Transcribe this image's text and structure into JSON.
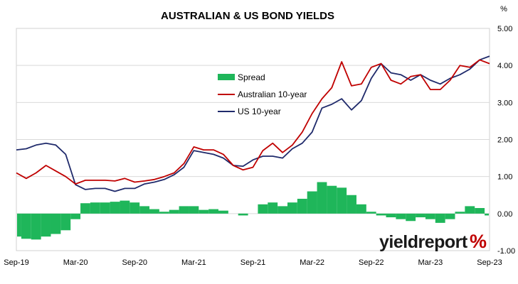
{
  "chart_data": {
    "type": "line",
    "title": "AUSTRALIAN & US BOND YIELDS",
    "unit_label": "%",
    "xlabel": "",
    "ylabel": "",
    "ylim": [
      -1.0,
      5.0
    ],
    "y_ticks": [
      "5.00",
      "4.00",
      "3.00",
      "2.00",
      "1.00",
      "0.00",
      "-1.00"
    ],
    "x_ticks": [
      "Sep-19",
      "Mar-20",
      "Sep-20",
      "Mar-21",
      "Sep-21",
      "Mar-22",
      "Sep-22",
      "Mar-23",
      "Sep-23"
    ],
    "grid": true,
    "legend_position": "upper-left (inside plot)",
    "x": [
      "Sep-19",
      "Oct-19",
      "Nov-19",
      "Dec-19",
      "Jan-20",
      "Feb-20",
      "Mar-20",
      "Apr-20",
      "May-20",
      "Jun-20",
      "Jul-20",
      "Aug-20",
      "Sep-20",
      "Oct-20",
      "Nov-20",
      "Dec-20",
      "Jan-21",
      "Feb-21",
      "Mar-21",
      "Apr-21",
      "May-21",
      "Jun-21",
      "Jul-21",
      "Aug-21",
      "Sep-21",
      "Oct-21",
      "Nov-21",
      "Dec-21",
      "Jan-22",
      "Feb-22",
      "Mar-22",
      "Apr-22",
      "May-22",
      "Jun-22",
      "Jul-22",
      "Aug-22",
      "Sep-22",
      "Oct-22",
      "Nov-22",
      "Dec-22",
      "Jan-23",
      "Feb-23",
      "Mar-23",
      "Apr-23",
      "May-23",
      "Jun-23",
      "Jul-23",
      "Aug-23",
      "Sep-23"
    ],
    "series": [
      {
        "name": "Spread",
        "kind": "bar",
        "color": "#1fb65a",
        "values": [
          -0.62,
          -0.68,
          -0.7,
          -0.62,
          -0.55,
          -0.45,
          -0.15,
          0.28,
          0.3,
          0.3,
          0.32,
          0.35,
          0.3,
          0.2,
          0.12,
          0.05,
          0.1,
          0.2,
          0.2,
          0.1,
          0.12,
          0.08,
          0.0,
          -0.05,
          0.0,
          0.25,
          0.3,
          0.2,
          0.3,
          0.4,
          0.6,
          0.85,
          0.75,
          0.7,
          0.5,
          0.25,
          0.05,
          -0.05,
          -0.1,
          -0.15,
          -0.2,
          -0.1,
          -0.15,
          -0.25,
          -0.15,
          0.05,
          0.2,
          0.15,
          -0.05
        ]
      },
      {
        "name": "Australian 10-year",
        "kind": "line",
        "color": "#c00000",
        "values": [
          1.1,
          0.95,
          1.1,
          1.3,
          1.15,
          1.0,
          0.8,
          0.9,
          0.9,
          0.9,
          0.88,
          0.95,
          0.85,
          0.88,
          0.92,
          1.0,
          1.1,
          1.35,
          1.8,
          1.72,
          1.72,
          1.6,
          1.3,
          1.18,
          1.25,
          1.7,
          1.9,
          1.65,
          1.85,
          2.2,
          2.7,
          3.1,
          3.4,
          4.1,
          3.45,
          3.5,
          3.95,
          4.05,
          3.6,
          3.5,
          3.7,
          3.75,
          3.35,
          3.35,
          3.6,
          4.0,
          3.95,
          4.15,
          4.05
        ]
      },
      {
        "name": "US 10-year",
        "kind": "line",
        "color": "#1f2a6b",
        "values": [
          1.72,
          1.75,
          1.85,
          1.9,
          1.85,
          1.6,
          0.78,
          0.65,
          0.68,
          0.68,
          0.6,
          0.68,
          0.68,
          0.8,
          0.85,
          0.92,
          1.05,
          1.25,
          1.7,
          1.65,
          1.6,
          1.5,
          1.3,
          1.28,
          1.45,
          1.55,
          1.55,
          1.5,
          1.75,
          1.9,
          2.2,
          2.85,
          2.95,
          3.1,
          2.8,
          3.05,
          3.65,
          4.05,
          3.8,
          3.75,
          3.6,
          3.75,
          3.6,
          3.5,
          3.65,
          3.75,
          3.9,
          4.15,
          4.25
        ]
      }
    ]
  },
  "branding": {
    "logo_text": "yieldreport",
    "logo_symbol": "%"
  }
}
